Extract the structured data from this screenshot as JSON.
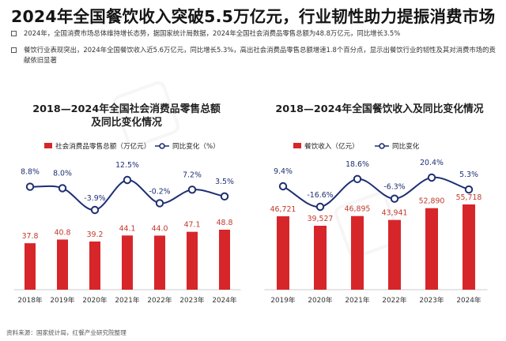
{
  "title": "2024年全国餐饮收入突破5.5万亿元，行业韧性助力提振消费市场",
  "bullets": [
    "2024年，全国消费市场总体维持增长态势，据国家统计局数据，2024年全国社会消费品零售总额为48.8万亿元，同比增长3.5%",
    "餐饮行业表现突出，2024年全国餐饮收入近5.6万亿元，同比增长5.3%，高出社会消费品零售总额增速1.8个百分点，显示出餐饮行业的韧性及其对消费市场的贡献依旧显著"
  ],
  "footer": "资料来源：国家统计局，红餐产业研究院整理",
  "colors": {
    "bar": "#d7262a",
    "line": "#1e2f73",
    "bar_label": "#c0392b"
  },
  "chart_data": [
    {
      "type": "bar",
      "title": "2018—2024年全国社会消费品零售总额及同比变化情况",
      "categories": [
        "2018年",
        "2019年",
        "2020年",
        "2021年",
        "2022年",
        "2023年",
        "2024年"
      ],
      "series": [
        {
          "name": "社会消费品零售总额（万亿元）",
          "type": "bar",
          "values": [
            37.8,
            40.8,
            39.2,
            44.1,
            44.0,
            47.1,
            48.8
          ],
          "labels": [
            "37.8",
            "40.8",
            "39.2",
            "44.1",
            "44.0",
            "47.1",
            "48.8"
          ]
        },
        {
          "name": "同比变化（%）",
          "type": "line",
          "values": [
            8.8,
            8.0,
            -3.9,
            12.5,
            -0.2,
            7.2,
            3.5
          ],
          "labels": [
            "8.8%",
            "8.0%",
            "-3.9%",
            "12.5%",
            "-0.2%",
            "7.2%",
            "3.5%"
          ]
        }
      ],
      "legend_position": "top",
      "grid": false
    },
    {
      "type": "bar",
      "title": "2018—2024年全国餐饮收入及同比变化情况",
      "categories": [
        "2019年",
        "2020年",
        "2021年",
        "2022年",
        "2023年",
        "2024年"
      ],
      "series": [
        {
          "name": "餐饮收入（亿元）",
          "type": "bar",
          "values": [
            46721,
            39527,
            46895,
            43941,
            52890,
            55718
          ],
          "labels": [
            "46,721",
            "39,527",
            "46,895",
            "43,941",
            "52,890",
            "55,718"
          ]
        },
        {
          "name": "同比变化",
          "type": "line",
          "values": [
            9.4,
            -16.6,
            18.6,
            -6.3,
            20.4,
            5.3
          ],
          "labels": [
            "9.4%",
            "-16.6%",
            "18.6%",
            "-6.3%",
            "20.4%",
            "5.3%"
          ]
        }
      ],
      "legend_position": "top",
      "grid": false
    }
  ]
}
